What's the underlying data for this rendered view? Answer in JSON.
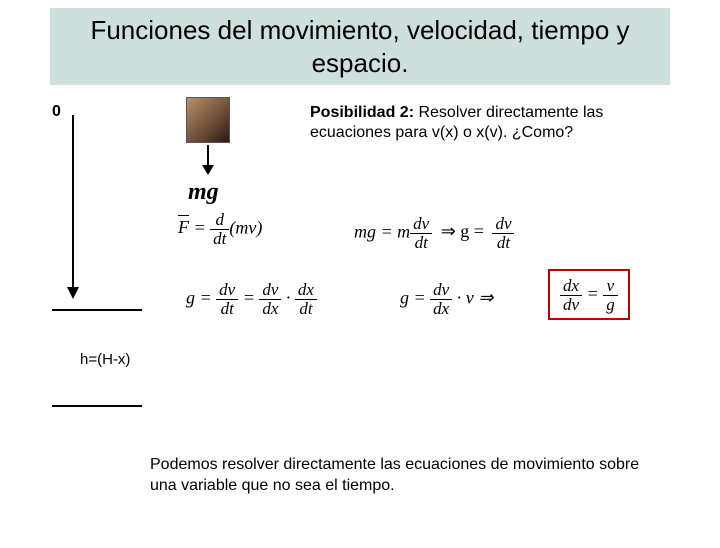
{
  "title": "Funciones del movimiento, velocidad, tiempo y espacio.",
  "diagram": {
    "zero_label": "0",
    "h_label": "h=(H-x)",
    "mg_label": "mg"
  },
  "pos2": {
    "lead": "Posibilidad 2:",
    "body": " Resolver directamente las ecuaciones para v(x) o x(v). ¿Como?"
  },
  "eq1": {
    "lhs_F": "F",
    "eq": " = ",
    "num": "d",
    "den": "dt",
    "paren": "(mv)"
  },
  "eq2": {
    "l1": "mg = m",
    "f1_num": "dv",
    "f1_den": "dt",
    "imp": " ⇒ g = ",
    "f2_num": "dv",
    "f2_den": "dt"
  },
  "eq3": {
    "lhs": "g = ",
    "f1_num": "dv",
    "f1_den": "dt",
    "mid1": " = ",
    "f2_num": "dv",
    "f2_den": "dx",
    "dot": " · ",
    "f3_num": "dx",
    "f3_den": "dt"
  },
  "eq4": {
    "lhs": "g = ",
    "f1_num": "dv",
    "f1_den": "dx",
    "mid": " · v  ⇒"
  },
  "boxed": {
    "f_num": "dx",
    "f_den": "dv",
    "eq": " = ",
    "r_num": "v",
    "r_den": "g"
  },
  "bottom": "Podemos resolver directamente las ecuaciones de movimiento sobre una variable que no sea el tiempo.",
  "colors": {
    "title_bg": "#cde0de",
    "box_border": "#c00000",
    "bg": "#ffffff"
  }
}
